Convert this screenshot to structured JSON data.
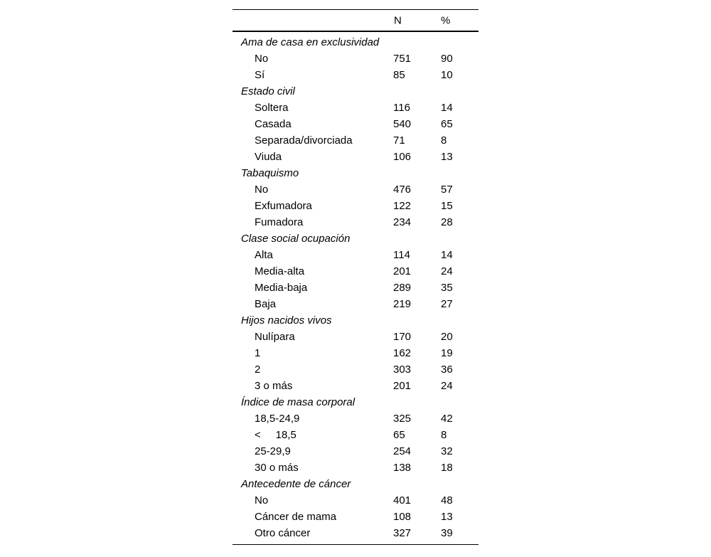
{
  "table": {
    "columns": {
      "n_label": "N",
      "pct_label": "%"
    },
    "sections": [
      {
        "category": "Ama de casa en exclusividad",
        "rows": [
          {
            "label": "No",
            "n": "751",
            "pct": "90"
          },
          {
            "label": "Sí",
            "n": "85",
            "pct": "10"
          }
        ]
      },
      {
        "category": "Estado civil",
        "rows": [
          {
            "label": "Soltera",
            "n": "116",
            "pct": "14"
          },
          {
            "label": "Casada",
            "n": "540",
            "pct": "65"
          },
          {
            "label": "Separada/divorciada",
            "n": "71",
            "pct": "8"
          },
          {
            "label": "Viuda",
            "n": "106",
            "pct": "13"
          }
        ]
      },
      {
        "category": "Tabaquismo",
        "rows": [
          {
            "label": "No",
            "n": "476",
            "pct": "57"
          },
          {
            "label": "Exfumadora",
            "n": "122",
            "pct": "15"
          },
          {
            "label": "Fumadora",
            "n": "234",
            "pct": "28"
          }
        ]
      },
      {
        "category": "Clase social ocupación",
        "rows": [
          {
            "label": "Alta",
            "n": "114",
            "pct": "14"
          },
          {
            "label": "Media-alta",
            "n": "201",
            "pct": "24"
          },
          {
            "label": "Media-baja",
            "n": "289",
            "pct": "35"
          },
          {
            "label": "Baja",
            "n": "219",
            "pct": "27"
          }
        ]
      },
      {
        "category": "Hijos nacidos vivos",
        "rows": [
          {
            "label": "Nulípara",
            "n": "170",
            "pct": "20"
          },
          {
            "label": "1",
            "n": "162",
            "pct": "19"
          },
          {
            "label": "2",
            "n": "303",
            "pct": "36"
          },
          {
            "label": "3 o más",
            "n": "201",
            "pct": "24"
          }
        ]
      },
      {
        "category": "Índice de masa corporal",
        "rows": [
          {
            "label": "18,5-24,9",
            "n": "325",
            "pct": "42"
          },
          {
            "label": "<     18,5",
            "n": "65",
            "pct": "8"
          },
          {
            "label": "25-29,9",
            "n": "254",
            "pct": "32"
          },
          {
            "label": "30 o más",
            "n": "138",
            "pct": "18"
          }
        ]
      },
      {
        "category": "Antecedente de cáncer",
        "rows": [
          {
            "label": "No",
            "n": "401",
            "pct": "48"
          },
          {
            "label": "Cáncer de mama",
            "n": "108",
            "pct": "13"
          },
          {
            "label": "Otro cáncer",
            "n": "327",
            "pct": "39"
          }
        ]
      }
    ]
  }
}
